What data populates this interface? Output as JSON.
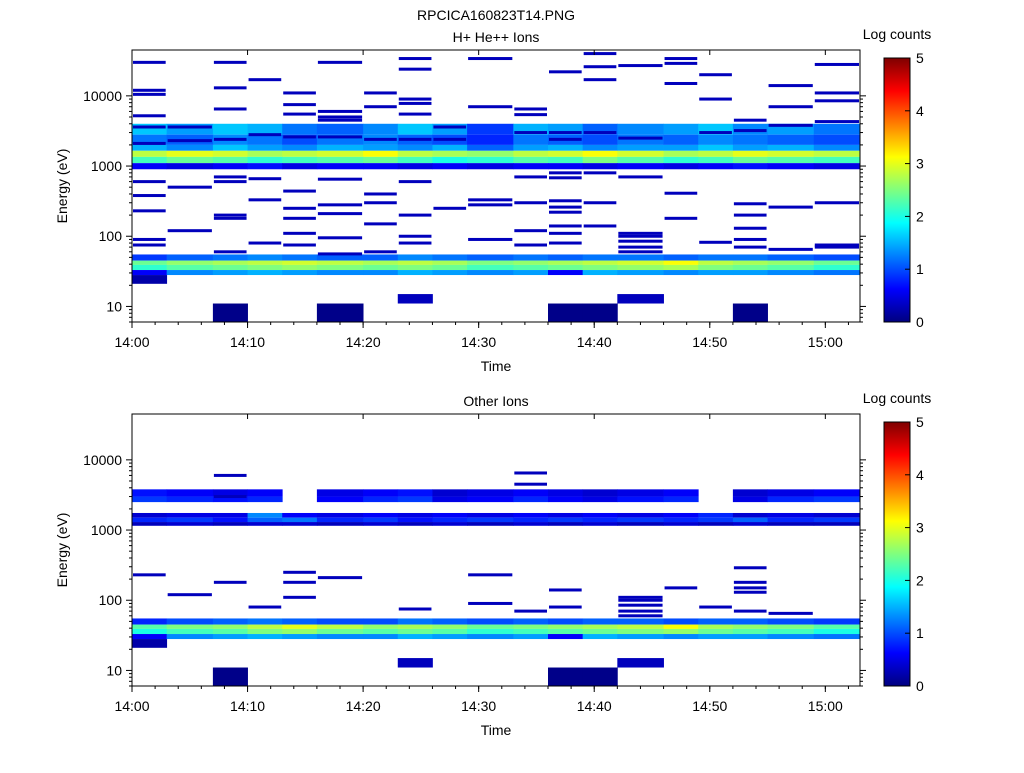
{
  "figure": {
    "title": "RPCICA160823T14.PNG"
  },
  "colormap_stops": [
    "#00007f",
    "#0000ff",
    "#007fff",
    "#00ffff",
    "#7fff7f",
    "#ffff00",
    "#ff7f00",
    "#ff0000",
    "#7f0000"
  ],
  "chart_data": [
    {
      "type": "heatmap",
      "title": "H+ He++ Ions",
      "xlabel": "Time",
      "ylabel": "Energy (eV)",
      "y_scale": "log",
      "x_range": [
        "14:00",
        "15:03"
      ],
      "ylim": [
        6,
        45000
      ],
      "x_ticks": [
        "14:00",
        "14:10",
        "14:20",
        "14:30",
        "14:40",
        "14:50",
        "15:00"
      ],
      "y_ticks": [
        10,
        100,
        1000,
        10000
      ],
      "y_tick_labels": [
        "10",
        "100",
        "1000",
        "10000"
      ],
      "colorbar": {
        "label": "Log counts",
        "range": [
          0,
          5
        ],
        "ticks": [
          "0",
          "1",
          "2",
          "3",
          "4",
          "5"
        ]
      },
      "time_bins": [
        "14:00",
        "14:03",
        "14:07",
        "14:10",
        "14:13",
        "14:16",
        "14:20",
        "14:23",
        "14:26",
        "14:29",
        "14:33",
        "14:36",
        "14:39",
        "14:42",
        "14:46",
        "14:49",
        "14:52",
        "14:55",
        "14:59"
      ],
      "bands": [
        {
          "e_low": 2800,
          "e_high": 4000,
          "levels": [
            1.6,
            1.4,
            1.6,
            1.5,
            1.2,
            1.1,
            1.3,
            1.6,
            1.4,
            0.9,
            1.5,
            1.4,
            1.1,
            1.3,
            1.4,
            1.6,
            1.3,
            1.4,
            1.2
          ]
        },
        {
          "e_low": 2000,
          "e_high": 2800,
          "levels": [
            1.2,
            1.1,
            1.3,
            1.2,
            1.0,
            1.2,
            1.3,
            1.1,
            1.0,
            0.8,
            1.2,
            1.1,
            1.0,
            1.2,
            1.1,
            1.3,
            1.2,
            1.1,
            1.0
          ]
        },
        {
          "e_low": 1650,
          "e_high": 2000,
          "levels": [
            1.5,
            1.3,
            1.6,
            1.4,
            1.3,
            1.5,
            1.4,
            1.3,
            1.5,
            1.1,
            1.4,
            1.5,
            1.3,
            1.4,
            1.4,
            1.6,
            1.4,
            1.5,
            1.3
          ]
        },
        {
          "e_low": 1350,
          "e_high": 1650,
          "levels": [
            2.8,
            3.0,
            2.9,
            2.7,
            2.8,
            2.9,
            3.1,
            2.8,
            2.7,
            2.6,
            2.8,
            2.9,
            3.1,
            2.9,
            2.7,
            2.8,
            3.0,
            2.9,
            2.8
          ]
        },
        {
          "e_low": 1100,
          "e_high": 1350,
          "levels": [
            2.2,
            2.4,
            2.3,
            2.1,
            2.2,
            2.3,
            2.4,
            2.2,
            2.0,
            2.1,
            2.3,
            2.2,
            2.5,
            2.3,
            2.1,
            2.2,
            2.4,
            2.3,
            2.2
          ]
        },
        {
          "e_low": 900,
          "e_high": 1100,
          "levels": [
            0.6,
            0.5,
            0.6,
            0.7,
            0.5,
            0.6,
            0.6,
            0.5,
            0.6,
            0.5,
            0.6,
            0.6,
            0.5,
            0.6,
            0.5,
            0.6,
            0.7,
            0.6,
            0.5
          ]
        },
        {
          "e_low": 45,
          "e_high": 55,
          "levels": [
            0.9,
            1.1,
            1.2,
            1.3,
            1.2,
            1.1,
            1.1,
            1.3,
            1.2,
            1.1,
            1.2,
            1.1,
            1.2,
            1.2,
            1.1,
            1.2,
            1.2,
            1.1,
            1.0
          ]
        },
        {
          "e_low": 39,
          "e_high": 45,
          "levels": [
            2.4,
            2.6,
            2.7,
            2.8,
            2.9,
            2.8,
            2.7,
            2.8,
            2.7,
            2.5,
            2.6,
            2.7,
            2.8,
            2.9,
            3.1,
            2.8,
            2.7,
            2.6,
            2.4
          ]
        },
        {
          "e_low": 33,
          "e_high": 39,
          "levels": [
            2.1,
            2.3,
            2.4,
            2.5,
            2.6,
            2.5,
            2.4,
            2.5,
            2.4,
            2.2,
            2.3,
            2.4,
            2.5,
            2.6,
            2.7,
            2.5,
            2.4,
            2.3,
            2.1
          ]
        },
        {
          "e_low": 28,
          "e_high": 33,
          "levels": [
            0.6,
            1.3,
            1.4,
            1.5,
            1.4,
            1.3,
            1.3,
            1.5,
            1.4,
            1.3,
            1.4,
            0.6,
            1.5,
            1.4,
            1.3,
            1.4,
            1.4,
            1.3,
            1.2
          ]
        },
        {
          "e_low": 21,
          "e_high": 28,
          "levels": [
            0.2,
            null,
            null,
            null,
            null,
            null,
            null,
            null,
            null,
            null,
            null,
            null,
            null,
            null,
            null,
            null,
            null,
            null,
            null
          ]
        },
        {
          "e_low": 11,
          "e_high": 15,
          "levels": [
            null,
            null,
            null,
            null,
            null,
            null,
            null,
            0.3,
            null,
            null,
            null,
            null,
            null,
            0.3,
            null,
            null,
            null,
            null,
            null
          ]
        },
        {
          "e_low": 6,
          "e_high": 11,
          "levels": [
            null,
            null,
            0.05,
            null,
            null,
            0.05,
            null,
            null,
            null,
            null,
            null,
            0.05,
            0.05,
            null,
            null,
            null,
            0.05,
            null,
            null
          ]
        }
      ],
      "sparse_lines": [
        {
          "energies": [
            30000,
            12000,
            10500,
            5200,
            3600,
            2100,
            600,
            380,
            230,
            90,
            75
          ]
        },
        {
          "energies": [
            3600,
            2300,
            500,
            120
          ]
        },
        {
          "energies": [
            30000,
            13000,
            6500,
            2400,
            700,
            600,
            200,
            180,
            60
          ]
        },
        {
          "energies": [
            17000,
            2800,
            660,
            330,
            80
          ]
        },
        {
          "energies": [
            11000,
            7500,
            5500,
            2600,
            440,
            250,
            180,
            110,
            75
          ]
        },
        {
          "energies": [
            30000,
            6000,
            5000,
            4500,
            2600,
            650,
            280,
            210,
            95,
            56
          ]
        },
        {
          "energies": [
            11000,
            7000,
            2400,
            400,
            300,
            150,
            60
          ]
        },
        {
          "energies": [
            34000,
            24000,
            9000,
            7800,
            5500,
            2400,
            600,
            200,
            100,
            80
          ]
        },
        {
          "energies": [
            3600,
            2400,
            250
          ]
        },
        {
          "energies": [
            34000,
            7000,
            330,
            280,
            90
          ]
        },
        {
          "energies": [
            6500,
            5400,
            3000,
            700,
            300,
            120,
            75
          ]
        },
        {
          "energies": [
            22000,
            3000,
            2400,
            800,
            680,
            320,
            260,
            220,
            140,
            110,
            80
          ]
        },
        {
          "energies": [
            40000,
            26000,
            17000,
            3000,
            800,
            300,
            140
          ]
        },
        {
          "energies": [
            27000,
            2500,
            700,
            110,
            100,
            85,
            70,
            60
          ]
        },
        {
          "energies": [
            34000,
            29000,
            15000,
            410,
            180
          ]
        },
        {
          "energies": [
            20000,
            9000,
            3000,
            82
          ]
        },
        {
          "energies": [
            4500,
            3200,
            290,
            200,
            130,
            90,
            70
          ]
        },
        {
          "energies": [
            14000,
            7000,
            3800,
            260,
            65
          ]
        },
        {
          "energies": [
            28000,
            11000,
            8500,
            4300,
            300,
            75,
            70
          ]
        }
      ]
    },
    {
      "type": "heatmap",
      "title": "Other Ions",
      "xlabel": "Time",
      "ylabel": "Energy (eV)",
      "y_scale": "log",
      "x_range": [
        "14:00",
        "15:03"
      ],
      "ylim": [
        6,
        45000
      ],
      "x_ticks": [
        "14:00",
        "14:10",
        "14:20",
        "14:30",
        "14:40",
        "14:50",
        "15:00"
      ],
      "y_ticks": [
        10,
        100,
        1000,
        10000
      ],
      "y_tick_labels": [
        "10",
        "100",
        "1000",
        "10000"
      ],
      "colorbar": {
        "label": "Log counts",
        "range": [
          0,
          5
        ],
        "ticks": [
          "0",
          "1",
          "2",
          "3",
          "4",
          "5"
        ]
      },
      "time_bins": [
        "14:00",
        "14:03",
        "14:07",
        "14:10",
        "14:13",
        "14:16",
        "14:20",
        "14:23",
        "14:26",
        "14:29",
        "14:33",
        "14:36",
        "14:39",
        "14:42",
        "14:46",
        "14:49",
        "14:52",
        "14:55",
        "14:59"
      ],
      "bands": [
        {
          "e_low": 3000,
          "e_high": 3800,
          "levels": [
            0.7,
            0.6,
            0.5,
            0.6,
            null,
            0.5,
            0.6,
            0.7,
            0.4,
            0.5,
            0.6,
            0.5,
            0.4,
            0.5,
            0.6,
            null,
            0.4,
            0.5,
            0.6
          ]
        },
        {
          "e_low": 2500,
          "e_high": 3000,
          "levels": [
            0.9,
            0.8,
            0.7,
            0.8,
            null,
            0.6,
            0.8,
            0.9,
            0.5,
            0.6,
            0.8,
            0.6,
            0.5,
            0.7,
            0.8,
            null,
            0.5,
            0.8,
            0.9
          ]
        },
        {
          "e_low": 1500,
          "e_high": 1750,
          "levels": [
            0.4,
            0.5,
            0.5,
            1.3,
            0.6,
            0.5,
            0.6,
            0.5,
            0.6,
            0.5,
            0.6,
            0.5,
            0.6,
            0.5,
            0.6,
            0.8,
            0.4,
            0.5,
            0.4
          ]
        },
        {
          "e_low": 1300,
          "e_high": 1500,
          "levels": [
            0.8,
            0.9,
            0.7,
            1.1,
            1.2,
            0.8,
            0.9,
            0.7,
            0.8,
            0.9,
            0.8,
            0.9,
            0.8,
            0.9,
            0.8,
            0.9,
            1.1,
            0.8,
            0.9
          ]
        },
        {
          "e_low": 1150,
          "e_high": 1300,
          "levels": [
            0.3,
            0.4,
            0.3,
            0.4,
            0.4,
            0.3,
            0.4,
            0.3,
            0.4,
            0.3,
            0.4,
            0.3,
            0.4,
            0.3,
            0.4,
            0.3,
            0.4,
            0.3,
            0.3
          ]
        },
        {
          "e_low": 45,
          "e_high": 55,
          "levels": [
            0.8,
            1.0,
            1.1,
            1.2,
            1.1,
            1.0,
            1.0,
            1.2,
            1.1,
            1.0,
            1.1,
            1.0,
            1.1,
            1.1,
            1.0,
            1.1,
            1.1,
            1.0,
            0.9
          ]
        },
        {
          "e_low": 39,
          "e_high": 45,
          "levels": [
            2.3,
            2.5,
            2.6,
            2.8,
            3.0,
            2.8,
            2.6,
            2.7,
            2.6,
            2.4,
            2.5,
            2.6,
            2.7,
            2.8,
            3.1,
            2.7,
            2.6,
            2.5,
            2.3
          ]
        },
        {
          "e_low": 33,
          "e_high": 39,
          "levels": [
            2.0,
            2.2,
            2.3,
            2.5,
            2.6,
            2.4,
            2.3,
            2.4,
            2.3,
            2.1,
            2.2,
            2.3,
            2.4,
            2.5,
            2.6,
            2.4,
            2.3,
            2.2,
            2.0
          ]
        },
        {
          "e_low": 28,
          "e_high": 33,
          "levels": [
            0.6,
            1.3,
            1.4,
            1.5,
            1.4,
            1.3,
            1.3,
            1.5,
            1.4,
            1.3,
            1.4,
            0.6,
            1.5,
            1.4,
            1.3,
            1.4,
            1.4,
            1.3,
            1.2
          ]
        },
        {
          "e_low": 21,
          "e_high": 28,
          "levels": [
            0.2,
            null,
            null,
            null,
            null,
            null,
            null,
            null,
            null,
            null,
            null,
            null,
            null,
            null,
            null,
            null,
            null,
            null,
            null
          ]
        },
        {
          "e_low": 11,
          "e_high": 15,
          "levels": [
            null,
            null,
            null,
            null,
            null,
            null,
            null,
            0.3,
            null,
            null,
            null,
            null,
            null,
            0.3,
            null,
            null,
            null,
            null,
            null
          ]
        },
        {
          "e_low": 6,
          "e_high": 11,
          "levels": [
            null,
            null,
            0.05,
            null,
            null,
            null,
            null,
            null,
            null,
            null,
            null,
            0.05,
            0.05,
            null,
            null,
            null,
            null,
            null,
            null
          ]
        }
      ],
      "sparse_lines": [
        {
          "energies": [
            230
          ]
        },
        {
          "energies": [
            120
          ]
        },
        {
          "energies": [
            6000,
            3000,
            180
          ]
        },
        {
          "energies": [
            80
          ]
        },
        {
          "energies": [
            250,
            180,
            110
          ]
        },
        {
          "energies": [
            210
          ]
        },
        {
          "energies": []
        },
        {
          "energies": [
            75
          ]
        },
        {
          "energies": []
        },
        {
          "energies": [
            230,
            90
          ]
        },
        {
          "energies": [
            6500,
            4500,
            70
          ]
        },
        {
          "energies": [
            140,
            80
          ]
        },
        {
          "energies": []
        },
        {
          "energies": [
            110,
            100,
            85,
            70,
            60
          ]
        },
        {
          "energies": [
            150
          ]
        },
        {
          "energies": [
            80
          ]
        },
        {
          "energies": [
            290,
            180,
            150,
            130,
            70
          ]
        },
        {
          "energies": [
            65
          ]
        },
        {
          "energies": []
        }
      ]
    }
  ]
}
